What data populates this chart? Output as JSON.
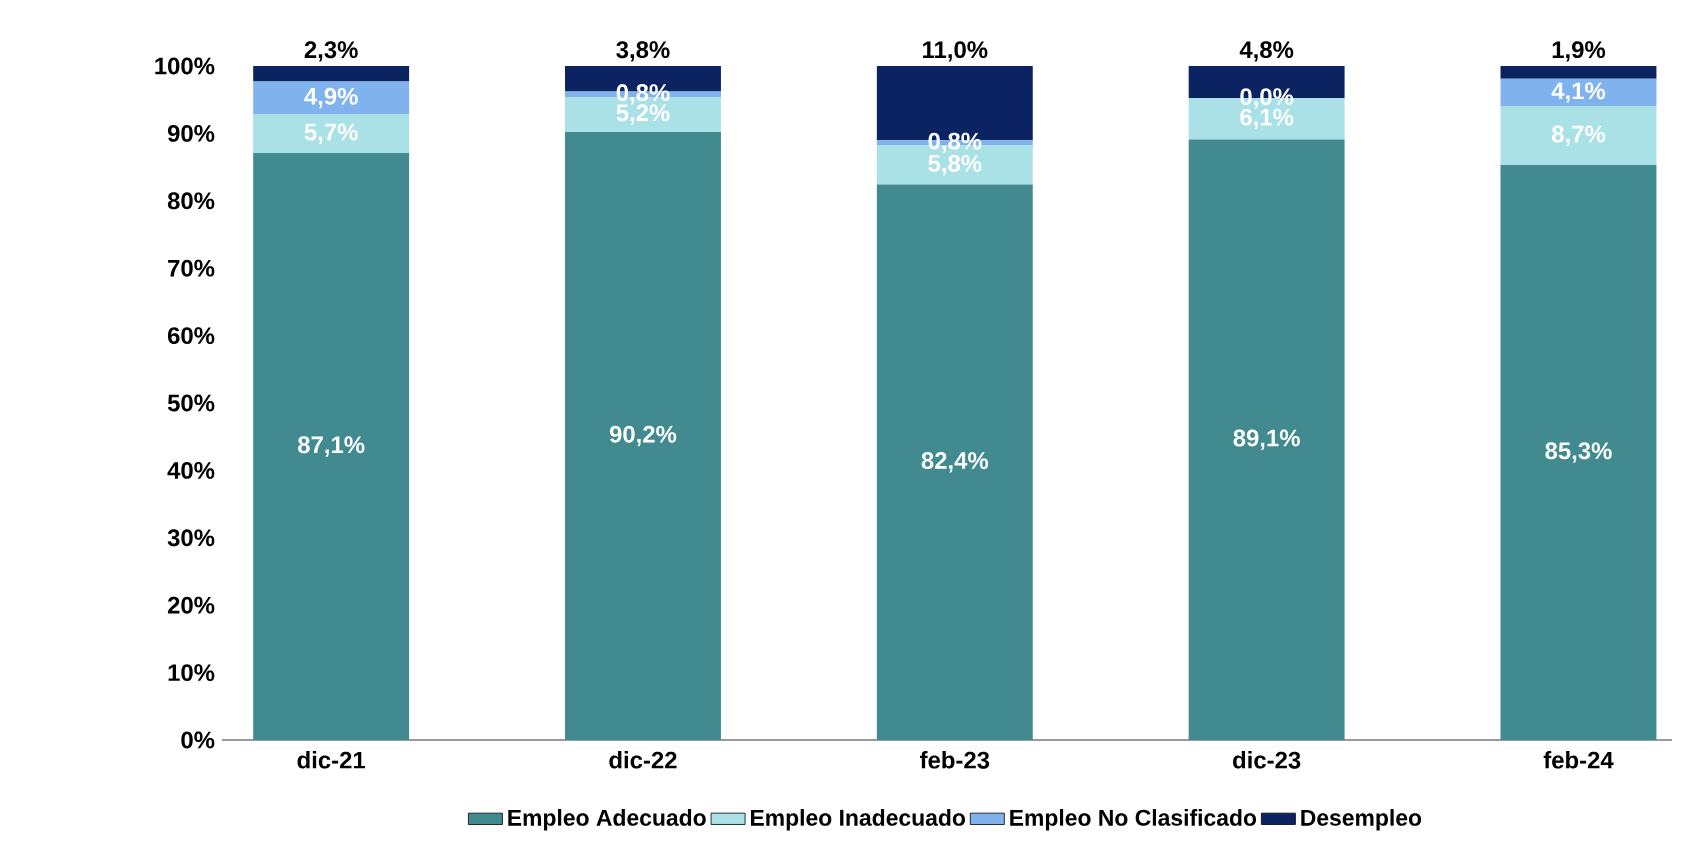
{
  "chart_data": {
    "type": "bar",
    "stacked": true,
    "categories": [
      "dic-21",
      "dic-22",
      "feb-23",
      "dic-23",
      "feb-24"
    ],
    "series": [
      {
        "name": "Empleo Adecuado",
        "color": "#418a8f",
        "values": [
          87.1,
          90.2,
          82.4,
          89.1,
          85.3
        ],
        "value_labels": [
          "87,1%",
          "90,2%",
          "82,4%",
          "89,1%",
          "85,3%"
        ]
      },
      {
        "name": "Empleo Inadecuado",
        "color": "#a9e1e6",
        "values": [
          5.7,
          5.2,
          5.8,
          6.1,
          8.7
        ],
        "value_labels": [
          "5,7%",
          "5,2%",
          "5,8%",
          "6,1%",
          "8,7%"
        ]
      },
      {
        "name": "Empleo No Clasificado",
        "color": "#80b3ee",
        "values": [
          4.9,
          0.8,
          0.8,
          0.0,
          4.1
        ],
        "value_labels": [
          "4,9%",
          "0,8%",
          "0,8%",
          "0,0%",
          "4,1%"
        ]
      },
      {
        "name": "Desempleo",
        "color": "#0b2360",
        "values": [
          2.3,
          3.8,
          11.0,
          4.8,
          1.9
        ],
        "value_labels": [
          "2,3%",
          "3,8%",
          "11,0%",
          "4,8%",
          "1,9%"
        ]
      }
    ],
    "ylim": [
      0,
      100
    ],
    "yticks": [
      {
        "value": 0,
        "label": "0%"
      },
      {
        "value": 10,
        "label": "10%"
      },
      {
        "value": 20,
        "label": "20%"
      },
      {
        "value": 30,
        "label": "30%"
      },
      {
        "value": 40,
        "label": "40%"
      },
      {
        "value": 50,
        "label": "50%"
      },
      {
        "value": 60,
        "label": "60%"
      },
      {
        "value": 70,
        "label": "70%"
      },
      {
        "value": 80,
        "label": "80%"
      },
      {
        "value": 90,
        "label": "90%"
      },
      {
        "value": 100,
        "label": "100%"
      }
    ],
    "grid": false,
    "legend": "bottom"
  }
}
